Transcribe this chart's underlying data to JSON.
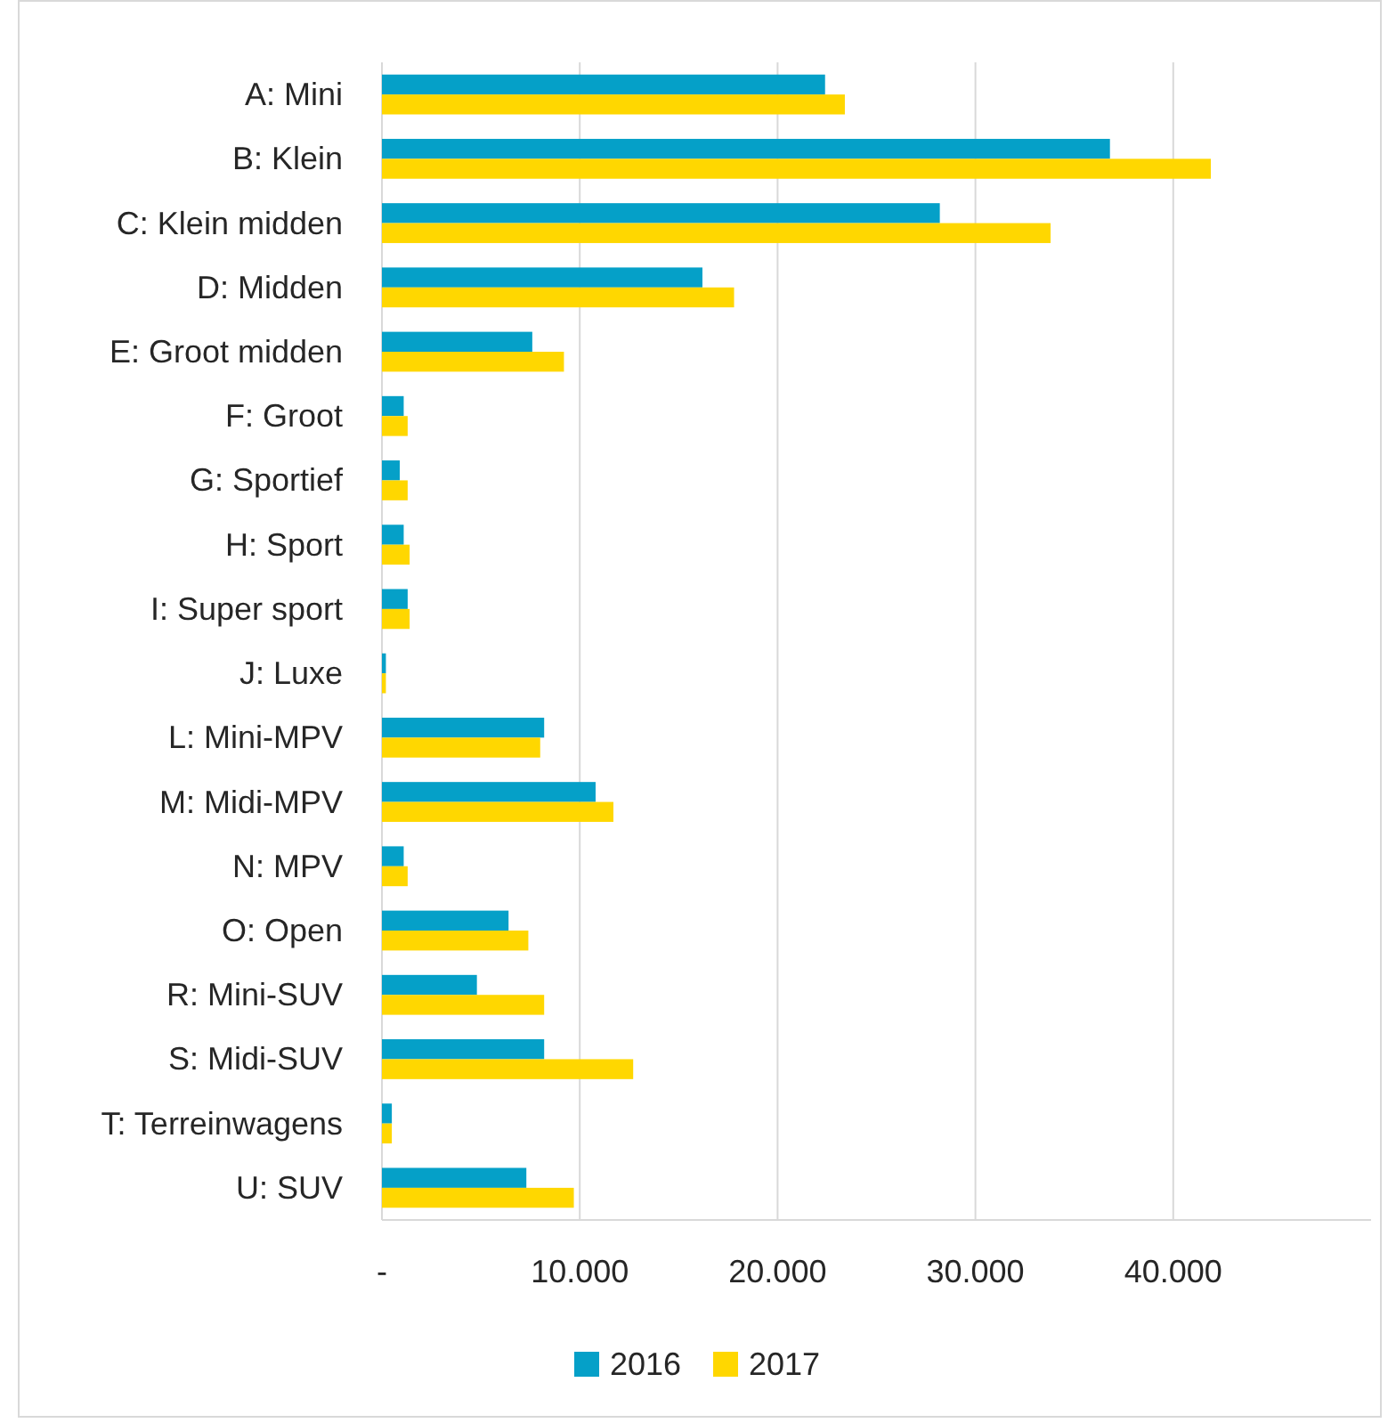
{
  "chart_data": {
    "type": "bar",
    "orientation": "horizontal",
    "categories": [
      "A: Mini",
      "B: Klein",
      "C: Klein midden",
      "D: Midden",
      "E: Groot midden",
      "F: Groot",
      "G: Sportief",
      "H: Sport",
      "I: Super sport",
      "J: Luxe",
      "L: Mini-MPV",
      "M: Midi-MPV",
      "N: MPV",
      "O: Open",
      "R: Mini-SUV",
      "S: Midi-SUV",
      "T: Terreinwagens",
      "U: SUV"
    ],
    "series": [
      {
        "name": "2016",
        "color": "#05a0c8",
        "values": [
          22400,
          36800,
          28200,
          16200,
          7600,
          1100,
          900,
          1100,
          1300,
          200,
          8200,
          10800,
          1100,
          6400,
          4800,
          8200,
          500,
          7300
        ]
      },
      {
        "name": "2017",
        "color": "#ffd700",
        "values": [
          23400,
          41900,
          33800,
          17800,
          9200,
          1300,
          1300,
          1400,
          1400,
          200,
          8000,
          11700,
          1300,
          7400,
          8200,
          12700,
          500,
          9700
        ]
      }
    ],
    "xlim": [
      0,
      50000
    ],
    "xticks": [
      {
        "value": 0,
        "label": "-"
      },
      {
        "value": 10000,
        "label": "10.000"
      },
      {
        "value": 20000,
        "label": "20.000"
      },
      {
        "value": 30000,
        "label": "30.000"
      },
      {
        "value": 40000,
        "label": "40.000"
      }
    ],
    "grid": "x",
    "legend": "bottom"
  }
}
